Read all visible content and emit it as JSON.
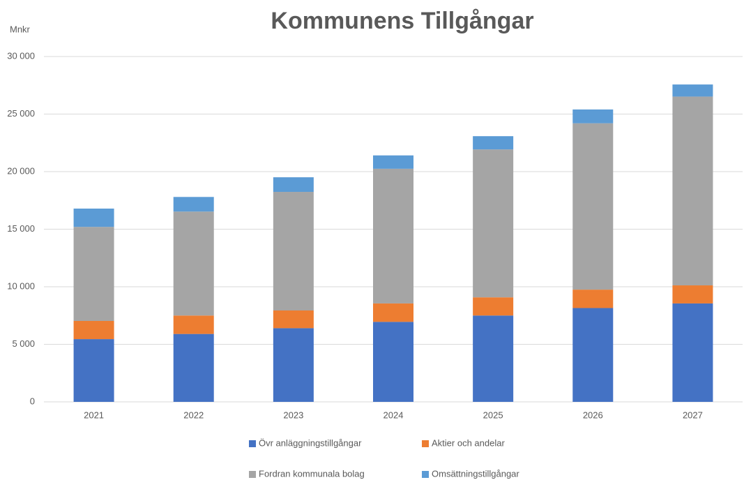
{
  "chart_data": {
    "type": "stacked_bar",
    "title": "Kommunens Tillgångar",
    "y_label": "Mnkr",
    "categories": [
      "2021",
      "2022",
      "2023",
      "2024",
      "2025",
      "2026",
      "2027"
    ],
    "series": [
      {
        "name": "Övr anläggningstillgångar",
        "color": "#4472c4",
        "values": [
          5450,
          5900,
          6400,
          6950,
          7500,
          8150,
          8550
        ]
      },
      {
        "name": "Aktier och andelar",
        "color": "#ed7d31",
        "values": [
          1580,
          1600,
          1540,
          1600,
          1580,
          1600,
          1570
        ]
      },
      {
        "name": "Fordran kommunala bolag",
        "color": "#a5a5a5",
        "values": [
          8170,
          9030,
          10300,
          11700,
          12850,
          14450,
          16400
        ]
      },
      {
        "name": "Omsättningstillgångar",
        "color": "#5b9bd5",
        "values": [
          1590,
          1270,
          1270,
          1160,
          1150,
          1200,
          1050
        ]
      }
    ],
    "ylim": [
      0,
      30000
    ],
    "yticks": [
      0,
      {
        "value": 5000,
        "label": "5 000"
      },
      {
        "value": 10000,
        "label": "10 000"
      },
      {
        "value": 15000,
        "label": "15 000"
      },
      {
        "value": 20000,
        "label": "20 000"
      },
      {
        "value": 25000,
        "label": "25 000"
      },
      {
        "value": 30000,
        "label": "30 000"
      }
    ],
    "grid": true
  }
}
